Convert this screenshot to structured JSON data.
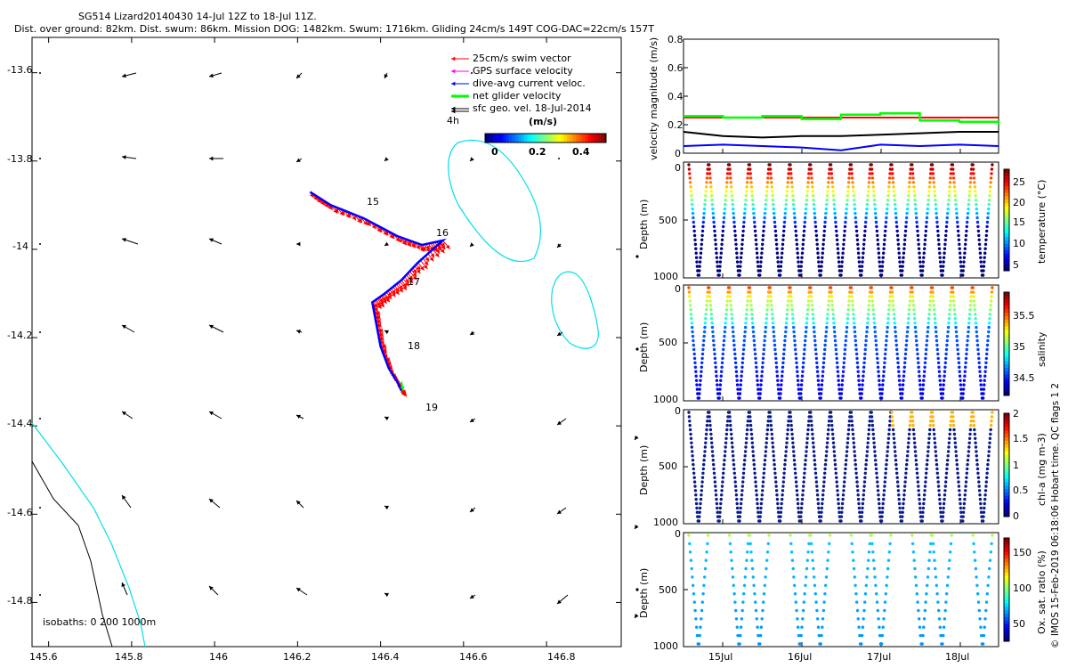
{
  "header": {
    "line1": "SG514 Lizard20140430 14-Jul 12Z to 18-Jul 11Z.",
    "line2": "Dist. over ground: 82km. Dist. swum: 86km. Mission DOG: 1482km. Swum: 1716km. Gliding 24cm/s 149T COG-DAC=22cm/s 157T"
  },
  "map": {
    "legend": [
      {
        "label": "25cm/s swim vector",
        "color": "#ff0000"
      },
      {
        "label": "GPS surface velocity",
        "color": "#ff00ff"
      },
      {
        "label": "dive-avg current veloc.",
        "color": "#0000ff"
      },
      {
        "label": "net glider velocity",
        "color": "#00ff00"
      },
      {
        "label": "sfc geo. vel. 18-Jul-2014",
        "color": "#000000"
      }
    ],
    "ref_vector_label": "4h",
    "colorbar_title": "(m/s)",
    "colorbar_ticks": [
      "0",
      "0.2",
      "0.4"
    ],
    "isobaths_label": "isobaths: 0   200  1000m",
    "day_labels": [
      "15",
      "16",
      "17",
      "18",
      "19"
    ],
    "xticks": [
      "145.6",
      "145.8",
      "146",
      "146.2",
      "146.4",
      "146.6",
      "146.8"
    ],
    "yticks": [
      "-13.6",
      "-13.8",
      "-14",
      "-14.2",
      "-14.4",
      "-14.6",
      "-14.8"
    ],
    "colors": {
      "isobath_200": "#00e0e8",
      "isobath_0": "#000000",
      "track": "#0000ff",
      "swim": "#ff0000"
    }
  },
  "panels": {
    "velocity": {
      "ylabel": "velocity magnitude (m/s)",
      "yticks": [
        "0",
        "0.2",
        "0.4",
        "0.6",
        "0.8"
      ]
    },
    "temperature": {
      "ylabel": "Depth (m)",
      "cbar_label": "temperature (°C)",
      "cbar_ticks": [
        "5",
        "10",
        "15",
        "20",
        "25"
      ],
      "yticks": [
        "0",
        "500",
        "1000"
      ]
    },
    "salinity": {
      "ylabel": "Depth (m)",
      "cbar_label": "salinity",
      "cbar_ticks": [
        "34.5",
        "35",
        "35.5"
      ],
      "yticks": [
        "0",
        "500",
        "1000"
      ]
    },
    "chla": {
      "ylabel": "Depth (m)",
      "cbar_label": "chl-a (mg m-3)",
      "cbar_ticks": [
        "0",
        "0.5",
        "1",
        "1.5",
        "2"
      ],
      "yticks": [
        "0",
        "500",
        "1000"
      ]
    },
    "oxsat": {
      "ylabel": "Depth (m)",
      "cbar_label": "Ox. sat. ratio (%)",
      "cbar_ticks": [
        "50",
        "100",
        "150"
      ],
      "yticks": [
        "0",
        "500",
        "1000"
      ]
    },
    "xticks": [
      "15Jul",
      "16Jul",
      "17Jul",
      "18Jul"
    ],
    "right_note": "© IMOS 15-Feb-2019 06:18:06 Hobart time. QC flags 1  2"
  },
  "chart_data": [
    {
      "type": "scatter",
      "title": "SG514 Lizard20140430 14-Jul 12Z to 18-Jul 11Z.",
      "xlabel": "",
      "ylabel": "",
      "xlim": [
        145.56,
        146.98
      ],
      "ylim": [
        -14.9,
        -13.52
      ],
      "track": {
        "lon": [
          146.23,
          146.28,
          146.36,
          146.44,
          146.5,
          146.55,
          146.49,
          146.45,
          146.41,
          146.38,
          146.39,
          146.4,
          146.42,
          146.44,
          146.45
        ],
        "lat": [
          -13.87,
          -13.9,
          -13.93,
          -13.97,
          -13.99,
          -13.98,
          -14.03,
          -14.07,
          -14.1,
          -14.12,
          -14.17,
          -14.22,
          -14.27,
          -14.3,
          -14.32
        ]
      },
      "day_markers": [
        {
          "label": "15",
          "lon": 146.37,
          "lat": -13.92
        },
        {
          "label": "16",
          "lon": 146.5,
          "lat": -13.99
        },
        {
          "label": "17",
          "lon": 146.42,
          "lat": -14.09
        },
        {
          "label": "18",
          "lon": 146.43,
          "lat": -14.23
        },
        {
          "label": "19",
          "lon": 146.45,
          "lat": -14.37
        }
      ]
    },
    {
      "type": "line",
      "ylabel": "velocity magnitude (m/s)",
      "ylim": [
        0,
        0.8
      ],
      "x": [
        "14.5Jul",
        "15Jul",
        "15.5Jul",
        "16Jul",
        "16.5Jul",
        "17Jul",
        "17.5Jul",
        "18Jul",
        "18.5Jul"
      ],
      "series": [
        {
          "values": [
            0.25,
            0.25,
            0.25,
            0.25,
            0.25,
            0.25,
            0.25,
            0.25,
            0.25
          ],
          "color": "#ff0000"
        },
        {
          "values": [
            0.26,
            0.25,
            0.26,
            0.24,
            0.27,
            0.28,
            0.23,
            0.22,
            0.2
          ],
          "color": "#00ff00"
        },
        {
          "values": [
            0.15,
            0.12,
            0.11,
            0.12,
            0.12,
            0.13,
            0.14,
            0.15,
            0.15
          ],
          "color": "#000000"
        },
        {
          "values": [
            0.05,
            0.06,
            0.05,
            0.04,
            0.02,
            0.06,
            0.05,
            0.06,
            0.05
          ],
          "color": "#0000ff"
        }
      ]
    },
    {
      "type": "scatter",
      "ylabel": "Depth (m)",
      "ylim": [
        1000,
        0
      ],
      "colorbar": "temperature (°C)",
      "clim": [
        3,
        29
      ]
    },
    {
      "type": "scatter",
      "ylabel": "Depth (m)",
      "ylim": [
        1000,
        0
      ],
      "colorbar": "salinity",
      "clim": [
        34.3,
        35.9
      ]
    },
    {
      "type": "scatter",
      "ylabel": "Depth (m)",
      "ylim": [
        1000,
        0
      ],
      "colorbar": "chl-a (mg m-3)",
      "clim": [
        0,
        2
      ]
    },
    {
      "type": "scatter",
      "ylabel": "Depth (m)",
      "ylim": [
        1000,
        0
      ],
      "colorbar": "Ox. sat. ratio (%)",
      "clim": [
        20,
        175
      ]
    }
  ]
}
